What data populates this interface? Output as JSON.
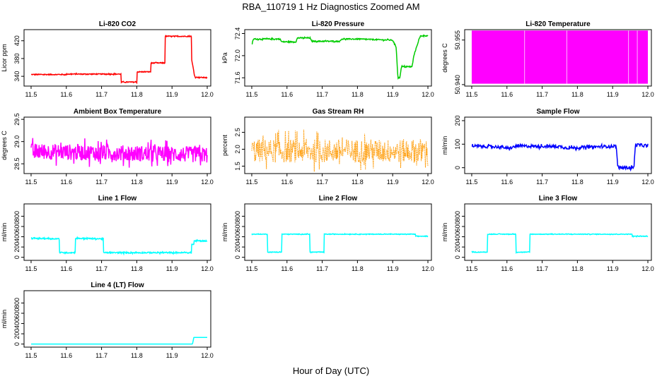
{
  "figure": {
    "title": "RBA_110719  1 Hz Diagnostics Zoomed AM",
    "xlabel": "Hour of Day (UTC)"
  },
  "chart_data": [
    {
      "type": "line",
      "title": "Li-820 CO2",
      "ylabel": "Licor ppm",
      "color": "#ff0000",
      "xlim": [
        11.48,
        12.01
      ],
      "ylim": [
        318,
        445
      ],
      "yticks": [
        "340",
        "380",
        "420"
      ],
      "ytick_values": [
        340,
        380,
        420
      ],
      "noise": 1,
      "series": [
        {
          "x": [
            11.5,
            11.6,
            11.6,
            11.755,
            11.755,
            11.8,
            11.8,
            11.84,
            11.84,
            11.88,
            11.88,
            11.955,
            11.955,
            11.965,
            11.965,
            12.0
          ],
          "y": [
            344,
            344,
            345,
            345,
            327,
            327,
            350,
            350,
            370,
            370,
            430,
            430,
            380,
            338,
            338,
            337
          ]
        }
      ]
    },
    {
      "type": "line",
      "title": "Li-820 Pressure",
      "ylabel": "kPa",
      "color": "#00cc00",
      "xlim": [
        11.48,
        12.01
      ],
      "ylim": [
        71.45,
        72.47
      ],
      "yticks": [
        "71.6",
        "72.0",
        "72.4"
      ],
      "ytick_values": [
        71.6,
        72.0,
        72.4
      ],
      "noise": 0.01,
      "series": [
        {
          "x": [
            11.5,
            11.505,
            11.58,
            11.585,
            11.625,
            11.63,
            11.665,
            11.67,
            11.75,
            11.755,
            11.8,
            11.9,
            11.91,
            11.915,
            11.92,
            11.925,
            11.955,
            11.96,
            11.975,
            11.98,
            12.0
          ],
          "y": [
            72.2,
            72.3,
            72.3,
            72.25,
            72.25,
            72.32,
            72.32,
            72.26,
            72.26,
            72.3,
            72.3,
            72.28,
            72.15,
            71.6,
            71.6,
            71.8,
            71.8,
            72.0,
            72.3,
            72.36,
            72.36
          ]
        }
      ]
    },
    {
      "type": "band",
      "title": "Li-820 Temperature",
      "ylabel": "degrees C",
      "color": "#ff00ff",
      "xlim": [
        11.48,
        12.01
      ],
      "ylim": [
        50.9395,
        50.9585
      ],
      "yticks": [
        "50.940",
        "50.955"
      ],
      "ytick_values": [
        50.94,
        50.955
      ],
      "band_low": 50.9403,
      "band_high": 50.9582,
      "gaps": [
        11.65,
        11.77,
        11.945,
        11.97
      ]
    },
    {
      "type": "line",
      "title": "Ambient Box Temperature",
      "ylabel": "degrees C",
      "color": "#ff00ff",
      "xlim": [
        11.48,
        12.01
      ],
      "ylim": [
        28.28,
        29.55
      ],
      "yticks": [
        "28.5",
        "29.0",
        "29.5"
      ],
      "ytick_values": [
        28.5,
        29.0,
        29.5
      ],
      "noise": 0.18,
      "series": [
        {
          "x": [
            11.5,
            12.0
          ],
          "y": [
            28.78,
            28.7
          ]
        }
      ]
    },
    {
      "type": "scatter-line",
      "title": "Gas Stream RH",
      "ylabel": "percent",
      "color": "#ff9900",
      "xlim": [
        11.48,
        12.01
      ],
      "ylim": [
        1.28,
        2.95
      ],
      "yticks": [
        "1.5",
        "2.0",
        "2.5"
      ],
      "ytick_values": [
        1.5,
        2.0,
        2.5
      ],
      "noise": 0.35,
      "series": [
        {
          "x": [
            11.5,
            12.0
          ],
          "y": [
            1.95,
            1.95
          ]
        }
      ]
    },
    {
      "type": "line",
      "title": "Sample Flow",
      "ylabel": "ml/min",
      "color": "#0000ff",
      "xlim": [
        11.48,
        12.01
      ],
      "ylim": [
        -25,
        215
      ],
      "yticks": [
        "0",
        "100",
        "200"
      ],
      "ytick_values": [
        0,
        100,
        200
      ],
      "noise": 6,
      "series": [
        {
          "x": [
            11.5,
            11.59,
            11.6,
            11.63,
            11.64,
            11.75,
            11.77,
            11.91,
            11.915,
            11.96,
            11.965,
            12.0
          ],
          "y": [
            92,
            88,
            80,
            92,
            92,
            90,
            84,
            92,
            0,
            0,
            98,
            92
          ]
        }
      ]
    },
    {
      "type": "line",
      "title": "Line 1 Flow",
      "ylabel": "ml/min",
      "color": "#00ffff",
      "xlim": [
        11.48,
        12.01
      ],
      "ylim": [
        -60,
        1040
      ],
      "yticks": [
        "0",
        "200",
        "400",
        "600",
        "800"
      ],
      "ytick_values": [
        0,
        200,
        400,
        600,
        800
      ],
      "noise": 12,
      "series": [
        {
          "x": [
            11.5,
            11.58,
            11.58,
            11.625,
            11.625,
            11.705,
            11.705,
            11.955,
            11.955,
            11.962,
            11.962,
            12.0
          ],
          "y": [
            370,
            360,
            90,
            90,
            370,
            360,
            90,
            90,
            250,
            250,
            320,
            320
          ]
        }
      ]
    },
    {
      "type": "line",
      "title": "Line 2 Flow",
      "ylabel": "ml/min",
      "color": "#00ffff",
      "xlim": [
        11.48,
        12.01
      ],
      "ylim": [
        -60,
        1040
      ],
      "yticks": [
        "0",
        "200",
        "400",
        "600",
        "800"
      ],
      "ytick_values": [
        0,
        200,
        400,
        600,
        800
      ],
      "noise": 6,
      "series": [
        {
          "x": [
            11.5,
            11.545,
            11.545,
            11.585,
            11.585,
            11.665,
            11.665,
            11.705,
            11.705,
            11.965,
            11.965,
            12.0
          ],
          "y": [
            450,
            450,
            100,
            100,
            450,
            450,
            100,
            100,
            450,
            450,
            410,
            410
          ]
        }
      ]
    },
    {
      "type": "line",
      "title": "Line 3 Flow",
      "ylabel": "ml/min",
      "color": "#00ffff",
      "xlim": [
        11.48,
        12.01
      ],
      "ylim": [
        -60,
        1040
      ],
      "yticks": [
        "0",
        "200",
        "400",
        "600",
        "800"
      ],
      "ytick_values": [
        0,
        200,
        400,
        600,
        800
      ],
      "noise": 6,
      "series": [
        {
          "x": [
            11.5,
            11.545,
            11.545,
            11.625,
            11.625,
            11.665,
            11.665,
            11.955,
            11.955,
            12.0
          ],
          "y": [
            100,
            100,
            450,
            450,
            100,
            100,
            450,
            450,
            410,
            410
          ]
        }
      ]
    },
    {
      "type": "line",
      "title": "Line 4 (LT) Flow",
      "ylabel": "ml/min",
      "color": "#00ffff",
      "xlim": [
        11.48,
        12.01
      ],
      "ylim": [
        -60,
        1040
      ],
      "yticks": [
        "0",
        "200",
        "400",
        "600",
        "800"
      ],
      "ytick_values": [
        0,
        200,
        400,
        600,
        800
      ],
      "noise": 0,
      "series": [
        {
          "x": [
            11.5,
            11.958,
            11.962,
            12.0
          ],
          "y": [
            0,
            0,
            130,
            130
          ]
        }
      ]
    }
  ],
  "xticks": [
    "11.5",
    "11.6",
    "11.7",
    "11.8",
    "11.9",
    "12.0"
  ],
  "xtick_values": [
    11.5,
    11.6,
    11.7,
    11.8,
    11.9,
    12.0
  ]
}
